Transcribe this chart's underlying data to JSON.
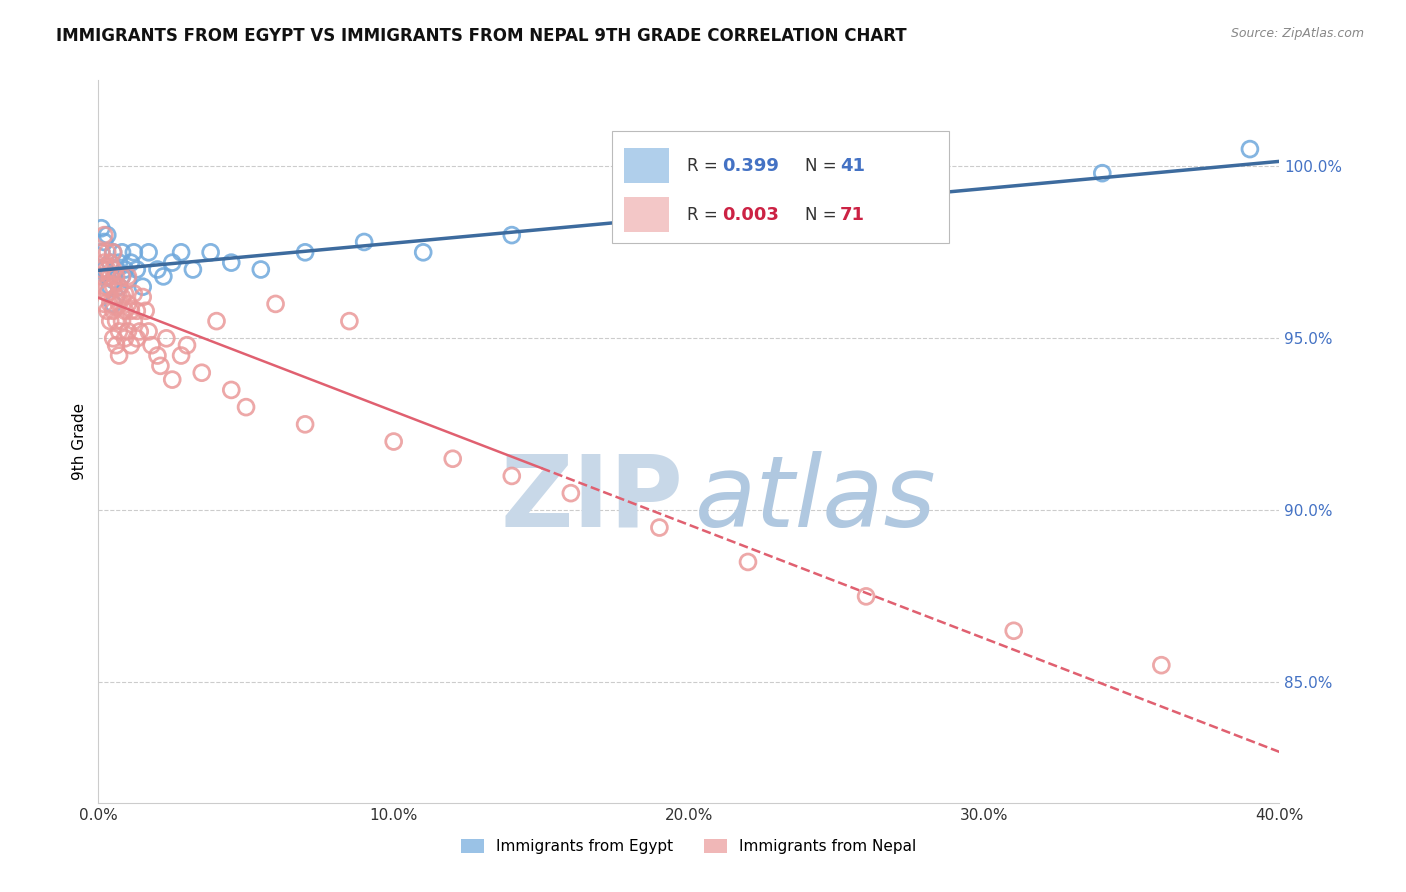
{
  "title": "IMMIGRANTS FROM EGYPT VS IMMIGRANTS FROM NEPAL 9TH GRADE CORRELATION CHART",
  "source_text": "Source: ZipAtlas.com",
  "ylabel": "9th Grade",
  "xlim": [
    0.0,
    0.4
  ],
  "ylim": [
    0.815,
    1.025
  ],
  "yticks": [
    0.85,
    0.9,
    0.95,
    1.0
  ],
  "ytick_labels": [
    "85.0%",
    "90.0%",
    "95.0%",
    "100.0%"
  ],
  "xticks": [
    0.0,
    0.1,
    0.2,
    0.3,
    0.4
  ],
  "xtick_labels": [
    "0.0%",
    "10.0%",
    "20.0%",
    "30.0%",
    "40.0%"
  ],
  "egypt_R": 0.399,
  "egypt_N": 41,
  "nepal_R": 0.003,
  "nepal_N": 71,
  "egypt_color": "#6fa8dc",
  "nepal_color": "#ea9999",
  "egypt_line_color": "#3d6b9e",
  "nepal_line_color": "#e06070",
  "nepal_line_dash": "--",
  "legend_label_egypt": "Immigrants from Egypt",
  "legend_label_nepal": "Immigrants from Nepal",
  "egypt_x": [
    0.001,
    0.001,
    0.002,
    0.002,
    0.003,
    0.003,
    0.004,
    0.004,
    0.005,
    0.005,
    0.005,
    0.006,
    0.006,
    0.007,
    0.007,
    0.008,
    0.008,
    0.009,
    0.01,
    0.011,
    0.012,
    0.013,
    0.015,
    0.017,
    0.02,
    0.022,
    0.025,
    0.028,
    0.032,
    0.038,
    0.045,
    0.055,
    0.07,
    0.09,
    0.11,
    0.14,
    0.18,
    0.22,
    0.28,
    0.34,
    0.39
  ],
  "egypt_y": [
    0.975,
    0.982,
    0.97,
    0.978,
    0.968,
    0.98,
    0.965,
    0.972,
    0.96,
    0.967,
    0.975,
    0.962,
    0.97,
    0.965,
    0.972,
    0.968,
    0.975,
    0.97,
    0.967,
    0.972,
    0.975,
    0.97,
    0.965,
    0.975,
    0.97,
    0.968,
    0.972,
    0.975,
    0.97,
    0.975,
    0.972,
    0.97,
    0.975,
    0.978,
    0.975,
    0.98,
    0.982,
    0.985,
    0.99,
    0.998,
    1.005
  ],
  "nepal_x": [
    0.001,
    0.001,
    0.001,
    0.002,
    0.002,
    0.002,
    0.002,
    0.003,
    0.003,
    0.003,
    0.003,
    0.003,
    0.004,
    0.004,
    0.004,
    0.004,
    0.005,
    0.005,
    0.005,
    0.005,
    0.005,
    0.006,
    0.006,
    0.006,
    0.006,
    0.007,
    0.007,
    0.007,
    0.007,
    0.008,
    0.008,
    0.008,
    0.009,
    0.009,
    0.009,
    0.01,
    0.01,
    0.01,
    0.011,
    0.011,
    0.012,
    0.012,
    0.013,
    0.013,
    0.014,
    0.015,
    0.016,
    0.017,
    0.018,
    0.02,
    0.021,
    0.023,
    0.025,
    0.028,
    0.03,
    0.035,
    0.04,
    0.045,
    0.05,
    0.06,
    0.07,
    0.085,
    0.1,
    0.12,
    0.14,
    0.16,
    0.19,
    0.22,
    0.26,
    0.31,
    0.36
  ],
  "nepal_y": [
    0.97,
    0.975,
    0.968,
    0.965,
    0.972,
    0.96,
    0.98,
    0.958,
    0.965,
    0.97,
    0.975,
    0.963,
    0.96,
    0.968,
    0.972,
    0.955,
    0.958,
    0.965,
    0.97,
    0.975,
    0.95,
    0.955,
    0.962,
    0.968,
    0.948,
    0.952,
    0.96,
    0.965,
    0.945,
    0.955,
    0.962,
    0.968,
    0.95,
    0.958,
    0.963,
    0.952,
    0.96,
    0.968,
    0.948,
    0.958,
    0.955,
    0.963,
    0.95,
    0.958,
    0.952,
    0.962,
    0.958,
    0.952,
    0.948,
    0.945,
    0.942,
    0.95,
    0.938,
    0.945,
    0.948,
    0.94,
    0.955,
    0.935,
    0.93,
    0.96,
    0.925,
    0.955,
    0.92,
    0.915,
    0.91,
    0.905,
    0.895,
    0.885,
    0.875,
    0.865,
    0.855
  ],
  "background_color": "#ffffff",
  "grid_color": "#cccccc",
  "watermark_zip_color": "#c8d8e8",
  "watermark_atlas_color": "#b0c8e0"
}
